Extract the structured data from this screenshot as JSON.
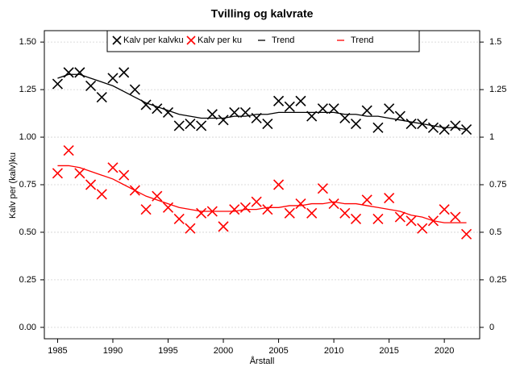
{
  "chart_data": {
    "type": "scatter",
    "title": "Tvilling og kalvrate",
    "x_label": "Årstall",
    "y_label": "Kalv per (kalv)ku",
    "x": [
      1985,
      1986,
      1987,
      1988,
      1989,
      1990,
      1991,
      1992,
      1993,
      1994,
      1995,
      1996,
      1997,
      1998,
      1999,
      2000,
      2001,
      2002,
      2003,
      2004,
      2005,
      2006,
      2007,
      2008,
      2009,
      2010,
      2011,
      2012,
      2013,
      2014,
      2015,
      2016,
      2017,
      2018,
      2019,
      2020,
      2021,
      2022
    ],
    "series": [
      {
        "name": "Kalv per kalvku",
        "color": "#000000",
        "kind": "scatter",
        "values": [
          1.28,
          1.34,
          1.34,
          1.27,
          1.21,
          1.31,
          1.34,
          1.25,
          1.17,
          1.15,
          1.13,
          1.06,
          1.07,
          1.06,
          1.12,
          1.09,
          1.13,
          1.13,
          1.1,
          1.07,
          1.19,
          1.16,
          1.19,
          1.11,
          1.15,
          1.15,
          1.1,
          1.07,
          1.14,
          1.05,
          1.15,
          1.11,
          1.07,
          1.07,
          1.05,
          1.04,
          1.06,
          1.04
        ]
      },
      {
        "name": "Kalv per ku",
        "color": "#ff0000",
        "kind": "scatter",
        "values": [
          0.81,
          0.93,
          0.81,
          0.75,
          0.7,
          0.84,
          0.8,
          0.72,
          0.62,
          0.69,
          0.63,
          0.57,
          0.52,
          0.6,
          0.61,
          0.53,
          0.62,
          0.63,
          0.66,
          0.62,
          0.75,
          0.6,
          0.65,
          0.6,
          0.73,
          0.65,
          0.6,
          0.57,
          0.67,
          0.57,
          0.68,
          0.58,
          0.56,
          0.52,
          0.56,
          0.62,
          0.58,
          0.49
        ]
      },
      {
        "name": "Trend",
        "color": "#000000",
        "kind": "line",
        "values": [
          1.31,
          1.33,
          1.33,
          1.31,
          1.29,
          1.27,
          1.24,
          1.21,
          1.18,
          1.16,
          1.14,
          1.12,
          1.11,
          1.1,
          1.1,
          1.1,
          1.11,
          1.11,
          1.12,
          1.12,
          1.13,
          1.13,
          1.13,
          1.13,
          1.13,
          1.13,
          1.12,
          1.12,
          1.11,
          1.11,
          1.1,
          1.09,
          1.08,
          1.07,
          1.06,
          1.05,
          1.05,
          1.04
        ]
      },
      {
        "name": "Trend",
        "color": "#ff0000",
        "kind": "line",
        "values": [
          0.85,
          0.85,
          0.84,
          0.82,
          0.8,
          0.78,
          0.75,
          0.72,
          0.69,
          0.67,
          0.65,
          0.63,
          0.62,
          0.61,
          0.61,
          0.61,
          0.61,
          0.62,
          0.62,
          0.63,
          0.63,
          0.64,
          0.64,
          0.65,
          0.65,
          0.66,
          0.65,
          0.65,
          0.64,
          0.63,
          0.62,
          0.61,
          0.59,
          0.58,
          0.56,
          0.55,
          0.55,
          0.55
        ]
      }
    ],
    "xlim": [
      1983.8,
      2023.2
    ],
    "xticks": [
      1985,
      1990,
      1995,
      2000,
      2005,
      2010,
      2015,
      2020
    ],
    "ylim": [
      -0.06,
      1.56
    ],
    "yticks": [
      {
        "value": 0,
        "label": "0.00"
      },
      0.25,
      {
        "value": 0.5,
        "label": "0.50"
      },
      0.75,
      {
        "value": 1,
        "label": "1.00"
      },
      1.25,
      {
        "value": 1.5,
        "label": "1.50"
      }
    ],
    "y2lim": [
      -0.06,
      1.56
    ],
    "y2ticks": [
      0,
      0.25,
      0.5,
      0.75,
      1,
      1.25,
      1.5
    ],
    "grid": true,
    "legend": "top"
  }
}
